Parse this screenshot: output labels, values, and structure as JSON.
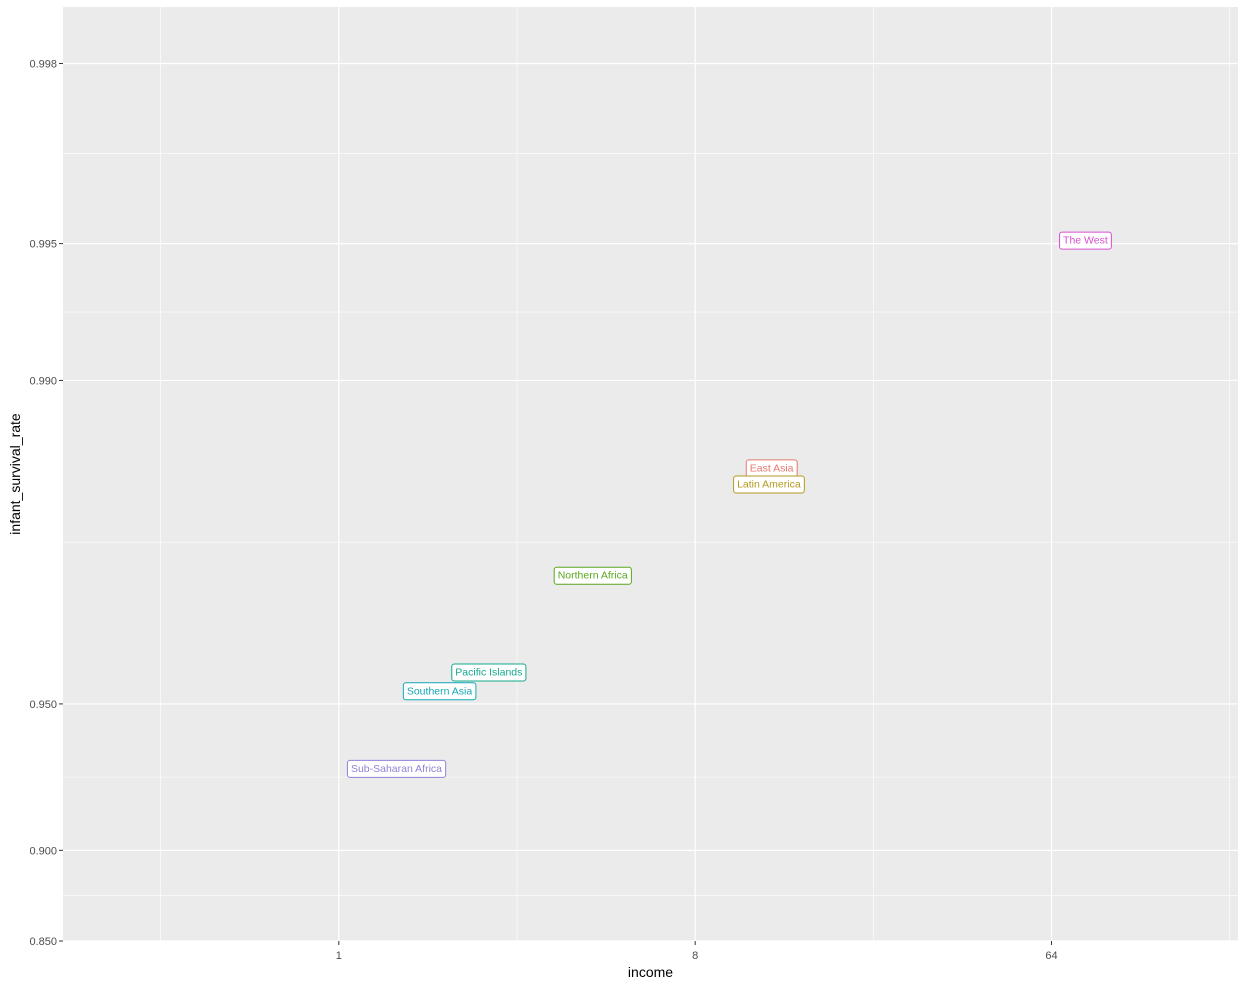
{
  "chart_data": {
    "type": "scatter",
    "title": "",
    "xlabel": "income",
    "ylabel": "infant_survival_rate",
    "x_scale": "log2",
    "y_scale": "logit",
    "xlim": [
      0.2,
      190
    ],
    "ylim": [
      0.85,
      0.9985
    ],
    "x_ticks": [
      1,
      8,
      64
    ],
    "x_tick_labels": [
      "1",
      "8",
      "64"
    ],
    "y_ticks": [
      0.85,
      0.9,
      0.95,
      0.99,
      0.995,
      0.998
    ],
    "y_tick_labels": [
      "0.850",
      "0.900",
      "0.950",
      "0.990",
      "0.995",
      "0.998"
    ],
    "grid": true,
    "panel_background": "#ebebeb",
    "grid_color": "#ffffff",
    "legend": "none",
    "points": [
      {
        "label": "The West",
        "x": 78.0,
        "y": 0.9951,
        "color": "#d94fd0"
      },
      {
        "label": "East Asia",
        "x": 12.5,
        "y": 0.9845,
        "color": "#e8766e"
      },
      {
        "label": "Latin America",
        "x": 12.3,
        "y": 0.9832,
        "color": "#b39a1e"
      },
      {
        "label": "Northern Africa",
        "x": 4.4,
        "y": 0.9735,
        "color": "#58a81e"
      },
      {
        "label": "Pacific Islands",
        "x": 2.4,
        "y": 0.9573,
        "color": "#14a88c"
      },
      {
        "label": "Southern Asia",
        "x": 1.8,
        "y": 0.9532,
        "color": "#14a8b8"
      },
      {
        "label": "Sub-Saharan Africa",
        "x": 1.4,
        "y": 0.932,
        "color": "#8f84d8"
      }
    ]
  }
}
